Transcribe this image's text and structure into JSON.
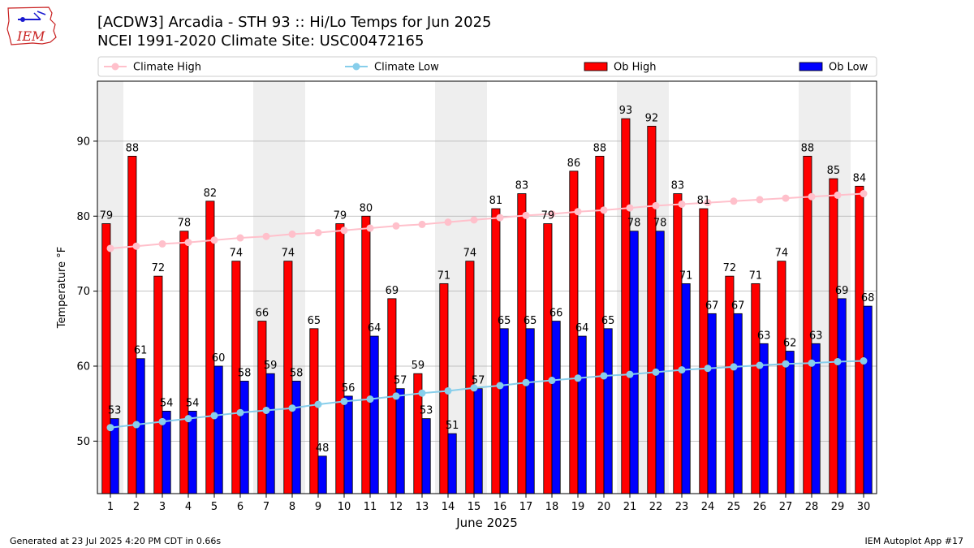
{
  "header": {
    "title": "[ACDW3] Arcadia - STH 93 :: Hi/Lo Temps for Jun 2025",
    "subtitle": "NCEI 1991-2020 Climate Site: USC00472165"
  },
  "logo": {
    "text": "IEM",
    "icon": "iem-logo-icon"
  },
  "footer": {
    "left": "Generated at 23 Jul 2025 4:20 PM CDT in 0.66s",
    "right": "IEM Autoplot App #17"
  },
  "colors": {
    "ob_high": "#ff0000",
    "ob_low": "#0000ff",
    "climate_high": "#ffc0cb",
    "climate_low": "#87ceeb",
    "weekend_band": "#eeeeee",
    "grid": "#b0b0b0",
    "logo": "#c81e1e"
  },
  "chart_data": {
    "type": "bar",
    "xlabel": "June 2025",
    "ylabel": "Temperature °F",
    "ylim": [
      43,
      98
    ],
    "yticks": [
      50,
      60,
      70,
      80,
      90
    ],
    "grid": "horizontal",
    "legend_placement": "top",
    "categories": [
      "1",
      "2",
      "3",
      "4",
      "5",
      "6",
      "7",
      "8",
      "9",
      "10",
      "11",
      "12",
      "13",
      "14",
      "15",
      "16",
      "17",
      "18",
      "19",
      "20",
      "21",
      "22",
      "23",
      "24",
      "25",
      "26",
      "27",
      "28",
      "29",
      "30"
    ],
    "shaded_days": [
      1,
      7,
      8,
      14,
      15,
      21,
      22,
      28,
      29
    ],
    "series": [
      {
        "name": "Climate High",
        "kind": "line",
        "values": [
          75.7,
          76.0,
          76.3,
          76.5,
          76.8,
          77.1,
          77.3,
          77.6,
          77.8,
          78.1,
          78.4,
          78.7,
          78.9,
          79.2,
          79.5,
          79.8,
          80.1,
          80.3,
          80.6,
          80.8,
          81.1,
          81.4,
          81.6,
          81.8,
          82.0,
          82.2,
          82.4,
          82.6,
          82.8,
          83.0
        ]
      },
      {
        "name": "Climate Low",
        "kind": "line",
        "values": [
          51.8,
          52.2,
          52.6,
          53.0,
          53.4,
          53.8,
          54.1,
          54.4,
          54.9,
          55.3,
          55.6,
          56.0,
          56.4,
          56.7,
          57.1,
          57.4,
          57.8,
          58.1,
          58.4,
          58.7,
          58.9,
          59.2,
          59.5,
          59.7,
          59.9,
          60.1,
          60.3,
          60.4,
          60.6,
          60.7
        ]
      },
      {
        "name": "Ob High",
        "kind": "bar",
        "values": [
          79,
          88,
          72,
          78,
          82,
          74,
          66,
          74,
          65,
          79,
          80,
          69,
          59,
          71,
          74,
          81,
          83,
          79,
          86,
          88,
          93,
          92,
          83,
          81,
          72,
          71,
          74,
          88,
          85,
          84
        ]
      },
      {
        "name": "Ob Low",
        "kind": "bar",
        "values": [
          53,
          61,
          54,
          54,
          60,
          58,
          59,
          58,
          48,
          56,
          64,
          57,
          53,
          51,
          57,
          65,
          65,
          66,
          64,
          65,
          78,
          78,
          71,
          67,
          67,
          63,
          62,
          63,
          69,
          68
        ]
      }
    ]
  }
}
